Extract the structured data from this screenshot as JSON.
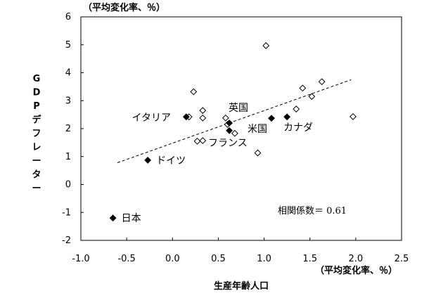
{
  "chart_data": {
    "type": "scatter",
    "title": "",
    "xlabel": "生産年齢人口",
    "ylabel": "GDPデフレーター",
    "x_unit": "（平均変化率、％）",
    "y_unit": "（平均変化率、％）",
    "xlim": [
      -1.0,
      2.5
    ],
    "ylim": [
      -2,
      6
    ],
    "x_ticks": [
      "-1.0",
      "-0.5",
      "0.0",
      "0.5",
      "1.0",
      "1.5",
      "2.0",
      "2.5"
    ],
    "y_ticks": [
      "-2",
      "-1",
      "0",
      "1",
      "2",
      "3",
      "4",
      "5",
      "6"
    ],
    "grid": false,
    "highlighted": [
      {
        "label": "日本",
        "x": -0.65,
        "y": -1.2
      },
      {
        "label": "ドイツ",
        "x": -0.27,
        "y": 0.87
      },
      {
        "label": "イタリア",
        "x": 0.15,
        "y": 2.42
      },
      {
        "label": "英国",
        "x": 0.62,
        "y": 2.2
      },
      {
        "label": "フランス",
        "x": 0.62,
        "y": 1.93
      },
      {
        "label": "米国",
        "x": 1.08,
        "y": 2.37
      },
      {
        "label": "カナダ",
        "x": 1.25,
        "y": 2.42
      }
    ],
    "others": [
      {
        "x": 0.18,
        "y": 2.42
      },
      {
        "x": 0.23,
        "y": 3.32
      },
      {
        "x": 0.27,
        "y": 1.55
      },
      {
        "x": 0.33,
        "y": 2.65
      },
      {
        "x": 0.33,
        "y": 2.38
      },
      {
        "x": 0.33,
        "y": 1.57
      },
      {
        "x": 0.58,
        "y": 2.38
      },
      {
        "x": 0.6,
        "y": 2.15
      },
      {
        "x": 0.68,
        "y": 1.83
      },
      {
        "x": 0.93,
        "y": 1.13
      },
      {
        "x": 1.02,
        "y": 4.97
      },
      {
        "x": 1.35,
        "y": 2.7
      },
      {
        "x": 1.42,
        "y": 3.45
      },
      {
        "x": 1.52,
        "y": 3.15
      },
      {
        "x": 1.63,
        "y": 3.68
      },
      {
        "x": 1.97,
        "y": 2.43
      }
    ],
    "trendline": {
      "x": [
        -0.6,
        1.95
      ],
      "y": [
        0.78,
        3.75
      ],
      "style": "dashed"
    },
    "annotation": "相関係数＝ 0.61"
  }
}
